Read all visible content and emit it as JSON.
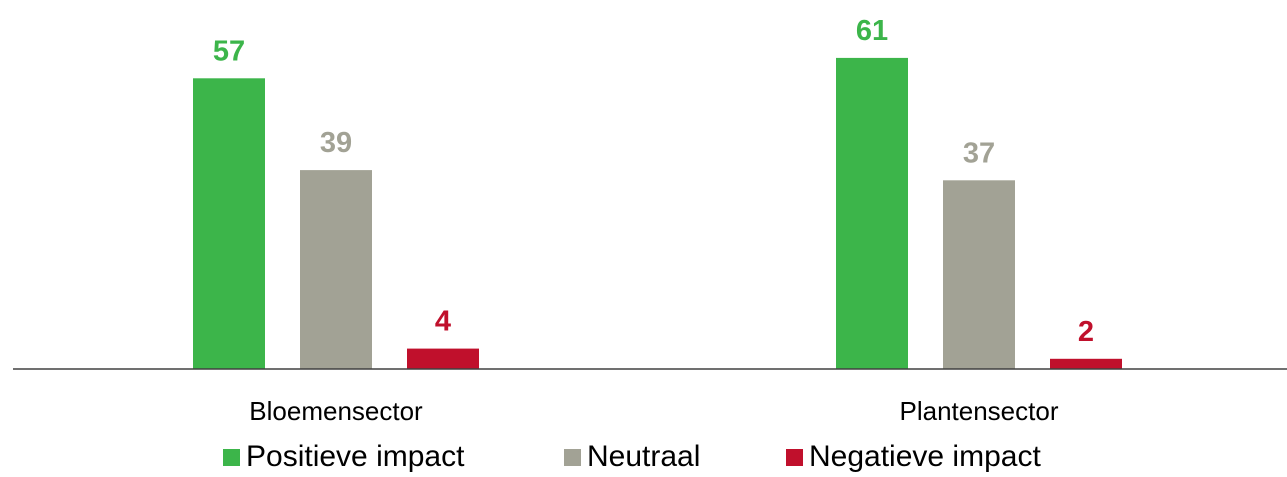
{
  "chart_data": {
    "type": "bar",
    "categories": [
      "Bloemensector",
      "Plantensector"
    ],
    "series": [
      {
        "name": "Positieve impact",
        "values": [
          57,
          61
        ],
        "color": "#3cb54a"
      },
      {
        "name": "Neutraal",
        "values": [
          39,
          37
        ],
        "color": "#a2a295"
      },
      {
        "name": "Negatieve impact",
        "values": [
          4,
          2
        ],
        "color": "#c0102c"
      }
    ],
    "title": "",
    "xlabel": "",
    "ylabel": "",
    "ylim": [
      0,
      70
    ],
    "grid": false,
    "legend_position": "bottom"
  }
}
